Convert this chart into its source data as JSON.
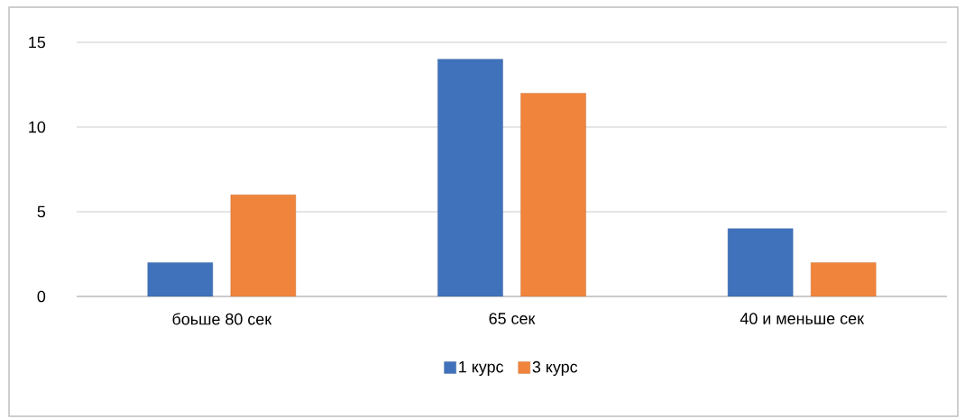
{
  "chart_data": {
    "type": "bar",
    "categories": [
      "боьше 80 сек",
      "65 сек",
      "40 и меньше сек"
    ],
    "series": [
      {
        "name": "1 курс",
        "color": "#4072bb",
        "values": [
          2,
          14,
          4
        ]
      },
      {
        "name": "3 курс",
        "color": "#f0843c",
        "values": [
          6,
          12,
          2
        ]
      }
    ],
    "ylim": [
      0,
      15
    ],
    "yticks": [
      0,
      5,
      10,
      15
    ],
    "grid": "y",
    "legend": "bottom"
  }
}
